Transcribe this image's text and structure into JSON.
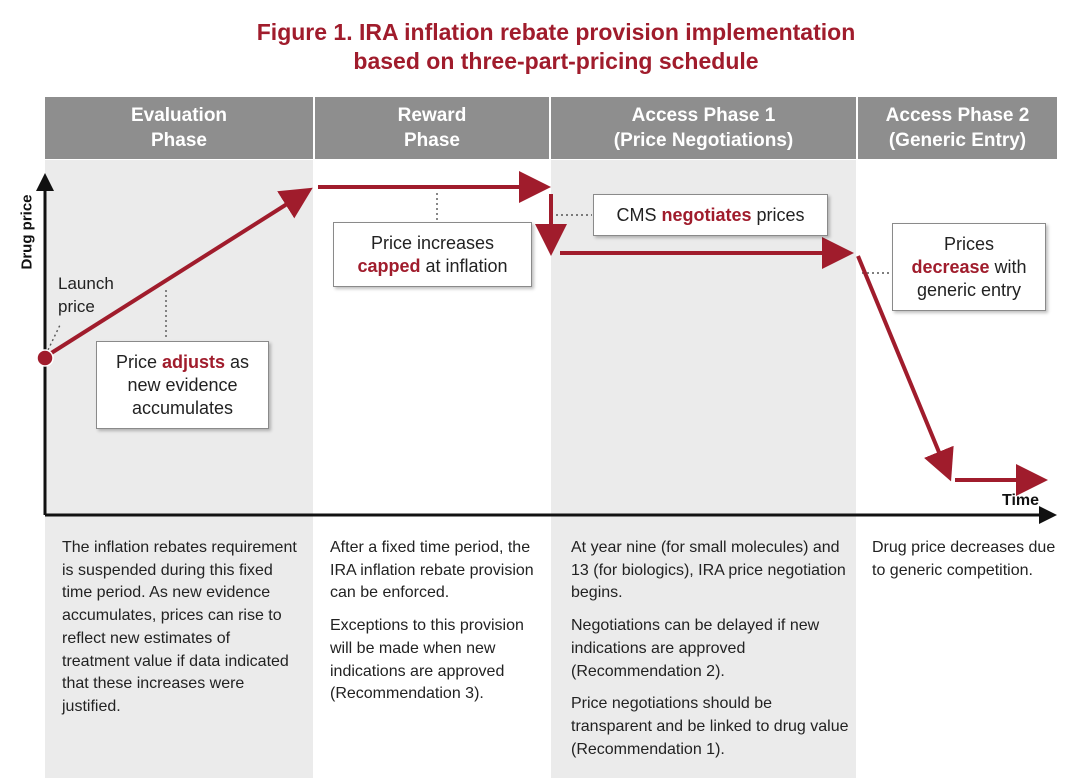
{
  "title": {
    "line1": "Figure 1. IRA inflation rebate provision implementation",
    "line2": "based on three-part-pricing schedule"
  },
  "phases": [
    {
      "line1": "Evaluation",
      "line2": "Phase"
    },
    {
      "line1": "Reward",
      "line2": "Phase"
    },
    {
      "line1": "Access Phase 1",
      "line2": "(Price Negotiations)"
    },
    {
      "line1": "Access Phase 2",
      "line2": "(Generic Entry)"
    }
  ],
  "axes": {
    "y_label": "Drug price",
    "x_label": "Time"
  },
  "launch_label": {
    "line1": "Launch",
    "line2": "price"
  },
  "callouts": {
    "adjusts": {
      "pre": "Price ",
      "key": "adjusts",
      "post": " as",
      "line2": "new evidence",
      "line3": "accumulates"
    },
    "capped": {
      "line1": "Price increases",
      "key": "capped",
      "post": " at inflation"
    },
    "negotiates": {
      "pre": "CMS ",
      "key": "negotiates",
      "post": " prices"
    },
    "decrease": {
      "line1": "Prices",
      "key": "decrease",
      "post": " with",
      "line3": "generic entry"
    }
  },
  "descriptions": {
    "evaluation": [
      "The inflation rebates requirement is suspended during this fixed time period. As new evidence accumulates, prices can rise to reflect new estimates of treatment value if data indicated that these increases were justified."
    ],
    "reward": [
      "After a fixed time period, the IRA inflation rebate provision can be enforced.",
      "Exceptions to this provision will be made when new indications are approved (Recommendation 3)."
    ],
    "access1": [
      "At year nine (for small molecules) and 13 (for biologics), IRA price negotiation begins.",
      "Negotiations can be delayed if new indications are approved (Recommendation 2).",
      "Price negotiations should be transparent and be linked to drug value (Recommendation 1)."
    ],
    "access2": [
      "Drug price decreases due to generic competition."
    ]
  },
  "colors": {
    "accent": "#a01c2c",
    "header_bg": "#8e8e8e",
    "column_bg": "#ebebeb"
  }
}
